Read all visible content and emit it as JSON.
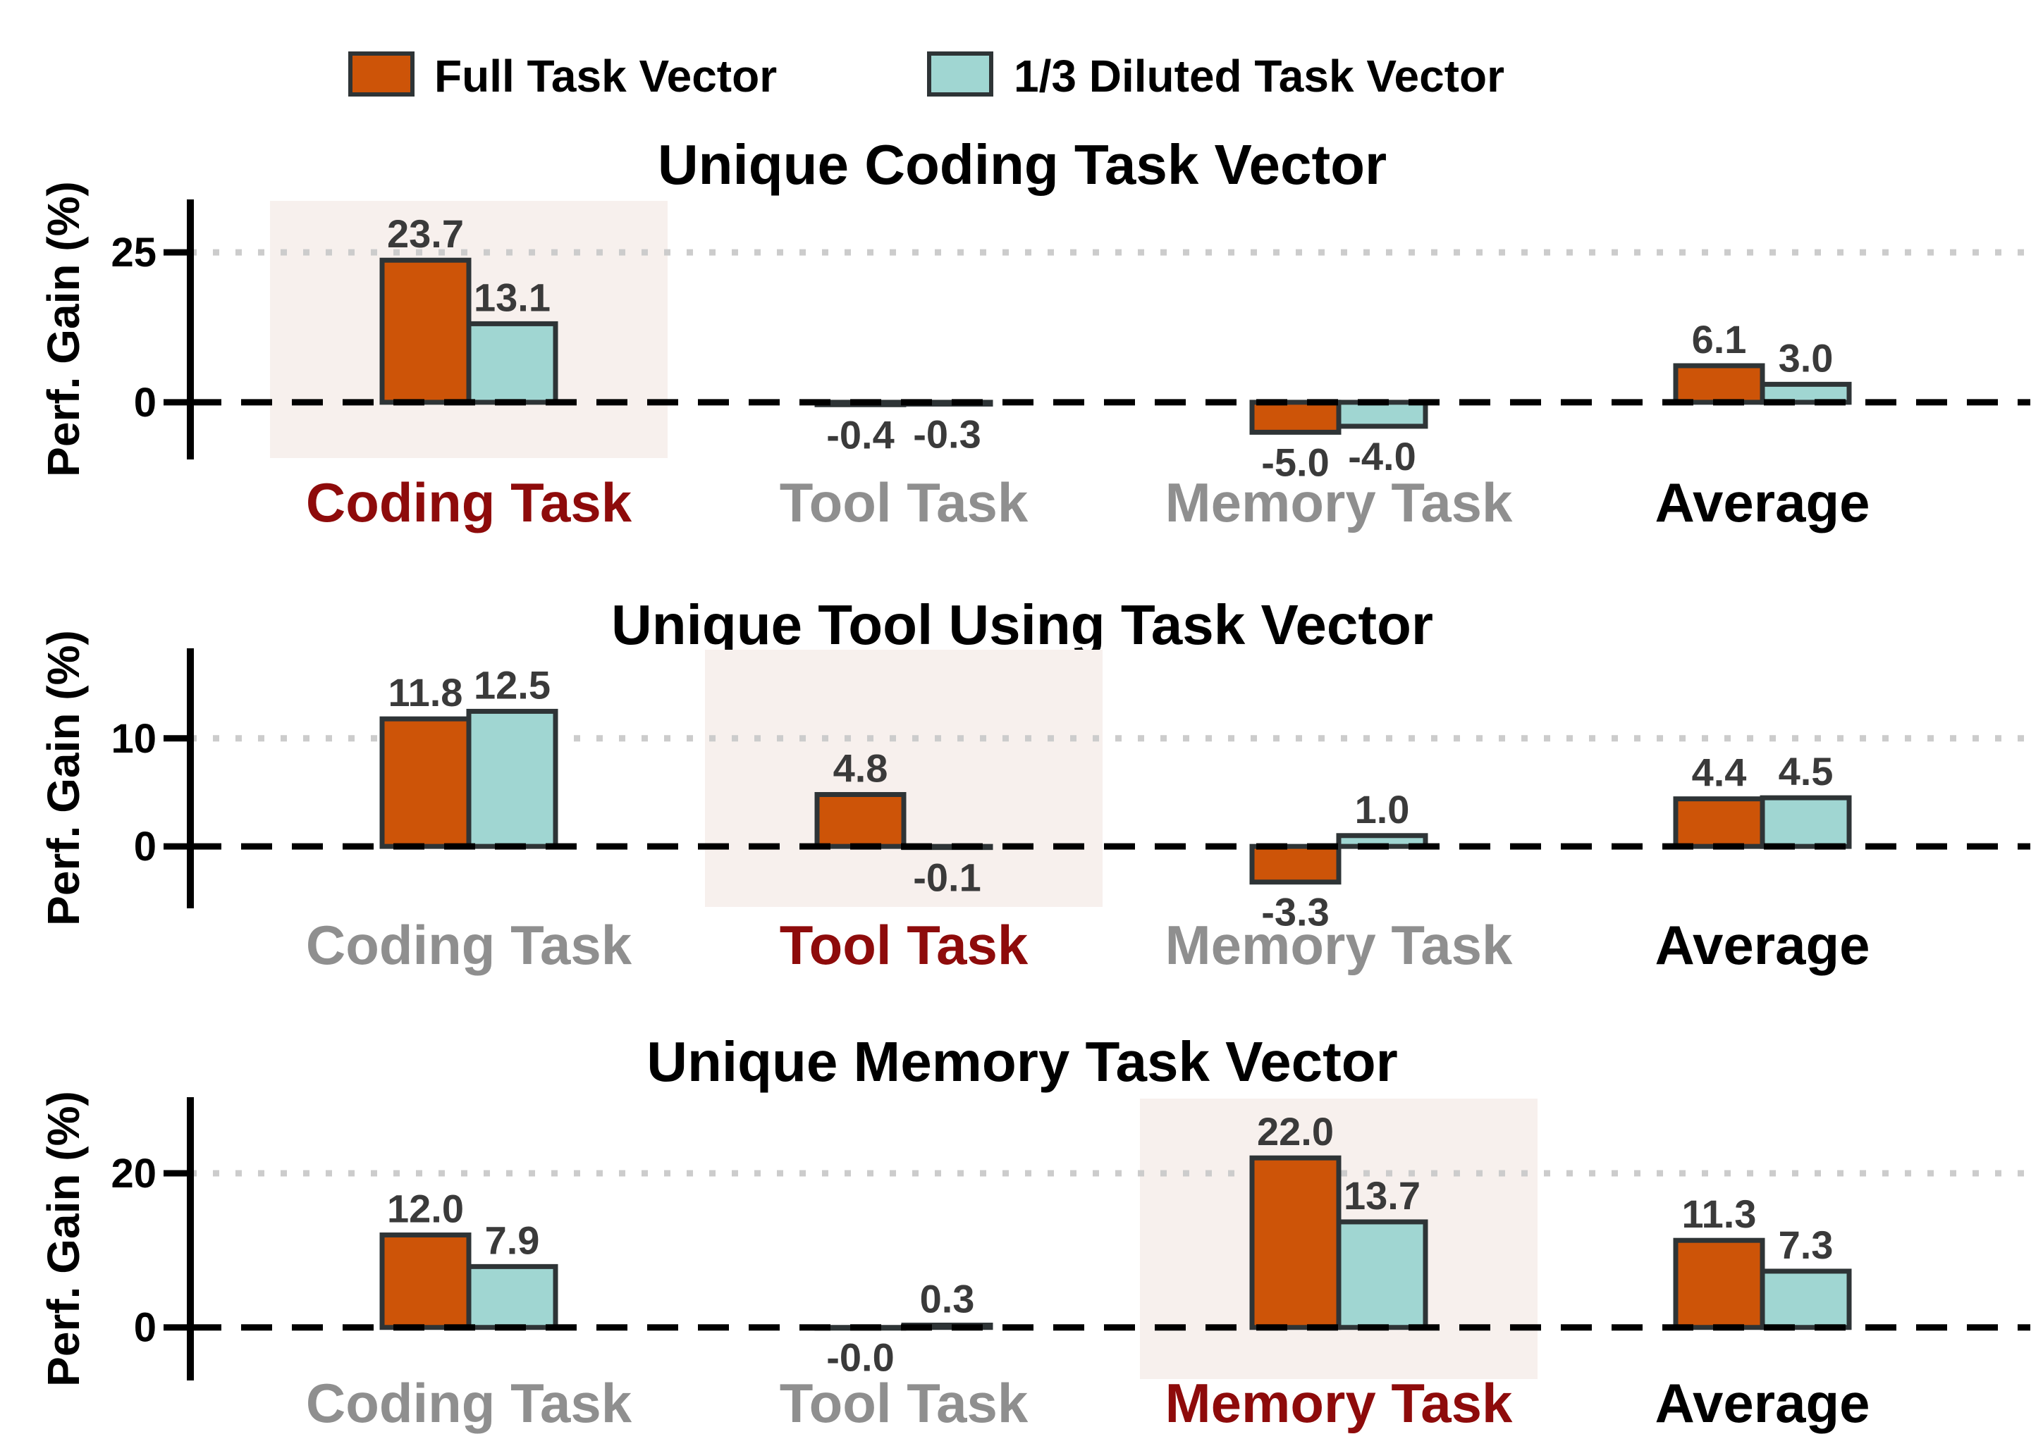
{
  "figure": {
    "background": "#ffffff",
    "ylabel": "Perf. Gain (%)"
  },
  "legend": {
    "items": [
      {
        "label": "Full Task Vector",
        "color": "#CD5408"
      },
      {
        "label": "1/3 Diluted Task Vector",
        "color": "#A0D6D2"
      }
    ]
  },
  "colors": {
    "full_bar": "#CD5408",
    "diluted_bar": "#A0D6D2",
    "bar_edge": "#2E3436",
    "highlight_band": "#F7F0ED",
    "highlight_label": "#8E0B0B",
    "normal_label": "#8F8F8F",
    "average_label": "#000000",
    "value_label": "#3A3A3A",
    "grid_dotted": "#CCCCCC",
    "zero_line": "#000000",
    "axis": "#000000"
  },
  "chart_data": [
    {
      "type": "bar",
      "title": "Unique Coding Task Vector",
      "ylabel": "Perf. Gain (%)",
      "categories": [
        "Coding Task",
        "Tool Task",
        "Memory Task",
        "Average"
      ],
      "highlighted_category": "Coding Task",
      "series": [
        {
          "name": "Full Task Vector",
          "values": [
            23.7,
            -0.4,
            -5.0,
            6.1
          ],
          "labels": [
            "23.7",
            "-0.4",
            "-5.0",
            "6.1"
          ]
        },
        {
          "name": "1/3 Diluted Task Vector",
          "values": [
            13.1,
            -0.3,
            -4.0,
            3.0
          ],
          "labels": [
            "13.1",
            "-0.3",
            "-4.0",
            "3.0"
          ]
        }
      ],
      "yticks": [
        0,
        25
      ],
      "ylim": [
        -9.3,
        33.6
      ],
      "gridline_y": 25,
      "zero_line_y": 0,
      "grid": "dotted line at y=25, dashed line at y=0",
      "legend_position": "figure top"
    },
    {
      "type": "bar",
      "title": "Unique Tool Using Task Vector",
      "ylabel": "Perf. Gain (%)",
      "categories": [
        "Coding Task",
        "Tool Task",
        "Memory Task",
        "Average"
      ],
      "highlighted_category": "Tool Task",
      "series": [
        {
          "name": "Full Task Vector",
          "values": [
            11.8,
            4.8,
            -3.3,
            4.4
          ],
          "labels": [
            "11.8",
            "4.8",
            "-3.3",
            "4.4"
          ]
        },
        {
          "name": "1/3 Diluted Task Vector",
          "values": [
            12.5,
            -0.1,
            1.0,
            4.5
          ],
          "labels": [
            "12.5",
            "-0.1",
            "1.0",
            "4.5"
          ]
        }
      ],
      "yticks": [
        0,
        10
      ],
      "ylim": [
        -5.6,
        18.2
      ],
      "gridline_y": 10,
      "zero_line_y": 0,
      "grid": "dotted line at y=10, dashed line at y=0",
      "legend_position": "figure top"
    },
    {
      "type": "bar",
      "title": "Unique Memory Task Vector",
      "ylabel": "Perf. Gain (%)",
      "categories": [
        "Coding Task",
        "Tool Task",
        "Memory Task",
        "Average"
      ],
      "highlighted_category": "Memory Task",
      "series": [
        {
          "name": "Full Task Vector",
          "values": [
            12.0,
            -0.0,
            22.0,
            11.3
          ],
          "labels": [
            "12.0",
            "-0.0",
            "22.0",
            "11.3"
          ]
        },
        {
          "name": "1/3 Diluted Task Vector",
          "values": [
            7.9,
            0.3,
            13.7,
            7.3
          ],
          "labels": [
            "7.9",
            "0.3",
            "13.7",
            "7.3"
          ]
        }
      ],
      "yticks": [
        0,
        20
      ],
      "ylim": [
        -6.7,
        29.7
      ],
      "gridline_y": 20,
      "zero_line_y": 0,
      "grid": "dotted line at y=20, dashed line at y=0",
      "legend_position": "figure top"
    }
  ]
}
